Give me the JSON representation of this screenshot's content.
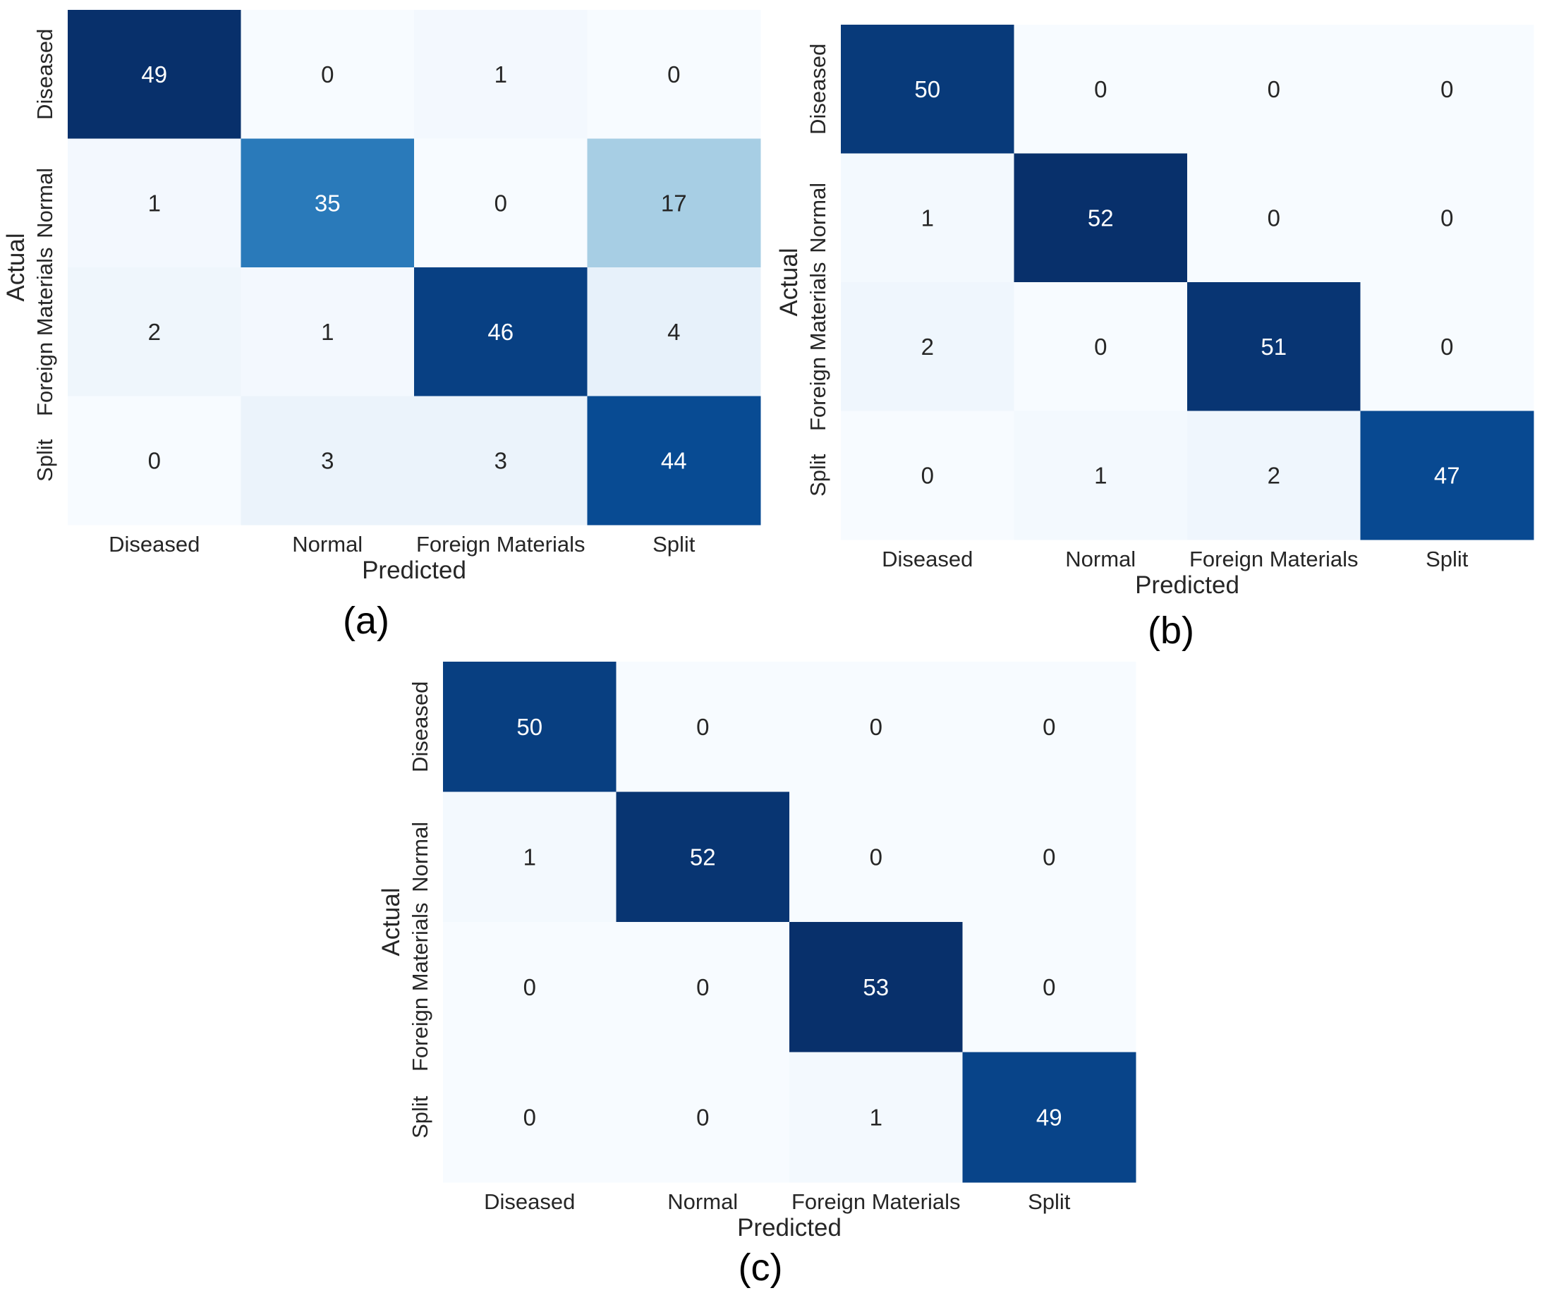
{
  "chart_data": [
    {
      "type": "heatmap",
      "panel_label": "(a)",
      "xlabel": "Predicted",
      "ylabel": "Actual",
      "x_categories": [
        "Diseased",
        "Normal",
        "Foreign Materials",
        "Split"
      ],
      "y_categories": [
        "Diseased",
        "Normal",
        "Foreign Materials",
        "Split"
      ],
      "matrix": [
        [
          49,
          0,
          1,
          0
        ],
        [
          1,
          35,
          0,
          17
        ],
        [
          2,
          1,
          46,
          4
        ],
        [
          0,
          3,
          3,
          44
        ]
      ],
      "colormap": "Blues",
      "vmin": 0,
      "vmax": 49
    },
    {
      "type": "heatmap",
      "panel_label": "(b)",
      "xlabel": "Predicted",
      "ylabel": "Actual",
      "x_categories": [
        "Diseased",
        "Normal",
        "Foreign Materials",
        "Split"
      ],
      "y_categories": [
        "Diseased",
        "Normal",
        "Foreign Materials",
        "Split"
      ],
      "matrix": [
        [
          50,
          0,
          0,
          0
        ],
        [
          1,
          52,
          0,
          0
        ],
        [
          2,
          0,
          51,
          0
        ],
        [
          0,
          1,
          2,
          47
        ]
      ],
      "colormap": "Blues",
      "vmin": 0,
      "vmax": 52
    },
    {
      "type": "heatmap",
      "panel_label": "(c)",
      "xlabel": "Predicted",
      "ylabel": "Actual",
      "x_categories": [
        "Diseased",
        "Normal",
        "Foreign Materials",
        "Split"
      ],
      "y_categories": [
        "Diseased",
        "Normal",
        "Foreign Materials",
        "Split"
      ],
      "matrix": [
        [
          50,
          0,
          0,
          0
        ],
        [
          1,
          52,
          0,
          0
        ],
        [
          0,
          0,
          53,
          0
        ],
        [
          0,
          0,
          1,
          49
        ]
      ],
      "colormap": "Blues",
      "vmin": 0,
      "vmax": 53
    }
  ],
  "colors": {
    "scale": [
      "#f7fbff",
      "#deebf7",
      "#c6dbef",
      "#9ecae1",
      "#6baed6",
      "#4292c6",
      "#2171b5",
      "#08519c",
      "#08306b"
    ],
    "text_dark": "#262626",
    "text_light": "#ffffff"
  }
}
